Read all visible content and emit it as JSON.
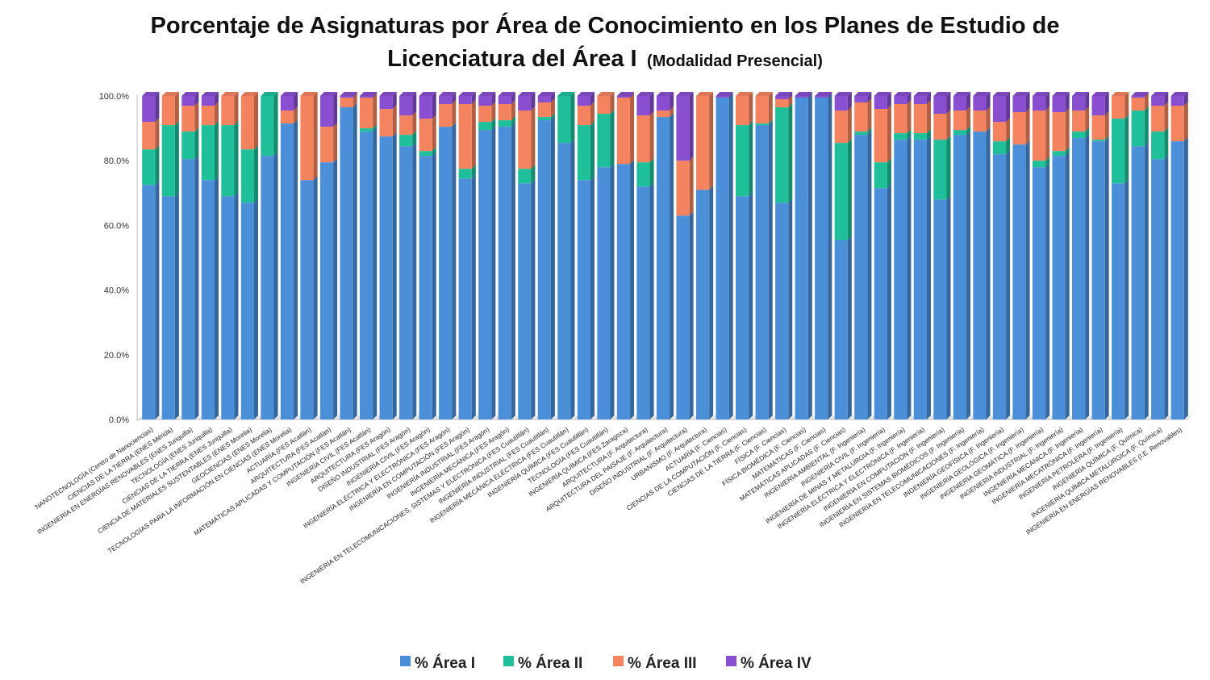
{
  "chart_data": {
    "type": "bar",
    "stacked": true,
    "title": "Porcentaje de Asignaturas por Área de Conocimiento en los Planes de Estudio de",
    "title_line2": "Licenciatura del Área I",
    "subtitle": "(Modalidad Presencial)",
    "xlabel": "",
    "ylabel": "",
    "ylim": [
      0,
      100
    ],
    "y_ticks": [
      "0.0%",
      "20.0%",
      "40.0%",
      "60.0%",
      "80.0%",
      "100.0%"
    ],
    "grid": false,
    "legend_position": "bottom",
    "categories": [
      "NANOTECNOLOGÍA (Centro de Nanociencias)",
      "CIENCIAS DE LA TIERRA (ENES Mérida)",
      "INGENIERÍA EN ENERGÍAS RENOVABLES (ENES Juriquilla)",
      "TECNOLOGÍA (ENES Juriquilla)",
      "CIENCIAS DE LA TIERRA (ENES Juriquilla)",
      "CIENCIA DE MATERIALES SUSTENTABLES (ENES Morelia)",
      "GEOCIENCIAS (ENES Morelia)",
      "TECNOLOGÍAS PARA LA INFORMACIÓN EN CIENCIAS (ENES Morelia)",
      "ACTUARÍA (FES Acatlán)",
      "ARQUITECTURA (FES Acatlán)",
      "MATEMÁTICAS APLICADAS Y COMPUTACIÓN (FES Acatlán)",
      "INGENIERÍA CIVIL (FES Acatlán)",
      "ARQUITECTURA (FES Aragón)",
      "DISEÑO INDUSTRIAL (FES Aragón)",
      "INGENIERÍA CIVIL (FES Aragón)",
      "INGENIERÍA ELÉCTRICA Y ELECTRÓNICA (FES Aragón)",
      "INGENIERÍA EN COMPUTACIÓN (FES Aragón)",
      "INGENIERÍA INDUSTRIAL (FES Aragón)",
      "INGENIERÍA MECÁNICA (FES Aragón)",
      "INGENIERÍA EN TELECOMUNICACIONES, SISTEMAS Y ELECTRÓNICA (FES Cuautitlán)",
      "INGENIERÍA INDUSTRIAL (FES Cuautitlán)",
      "INGENIERÍA MECÁNICA ELÉCTRICA (FES Cuautitlán)",
      "INGENIERÍA QUÍMICA (FES Cuautitlán)",
      "TECNOLOGÍA (FES Cuautitlán)",
      "INGENIERÍA QUÍMICA (FES Zaragoza)",
      "ARQUITECTURA (F. Arquitectura)",
      "ARQUITECTURA DEL PAISAJE (F. Arquitectura)",
      "DISEÑO INDUSTRIAL (F. Arquitectura)",
      "URBANISMO (F. Arquitectura)",
      "ACTUARÍA (F. Ciencias)",
      "CIENCIAS DE LA COMPUTACIÓN (F. Ciencias)",
      "CIENCIAS DE LA TIERRA (F. Ciencias)",
      "FÍSICA (F. Ciencias)",
      "FÍSICA BIOMÉDICA (F. Ciencias)",
      "MATEMÁTICAS (F. Ciencias)",
      "MATEMÁTICAS APLICADAS (F. Ciencias)",
      "INGENIERÍA AMBIENTAL (F. Ingeniería)",
      "INGENIERÍA CIVIL (F. Ingeniería)",
      "INGENIERÍA DE MINAS Y METALURGIA (F. Ingeniería)",
      "INGENIERÍA ELÉCTRICA Y ELECTRÓNICA (F. Ingeniería)",
      "INGENIERÍA EN COMPUTACIÓN (F. Ingeniería)",
      "INGENIERÍA EN SISTEMAS BIOMÉDICOS (F. Ingeniería)",
      "INGENIERÍA EN TELECOMUNICACIONES (F. Ingeniería)",
      "INGENIERÍA GEOFÍSICA (F. Ingeniería)",
      "INGENIERÍA GEOLÓGICA (F. Ingeniería)",
      "INGENIERÍA GEOMÁTICA (F. Ingeniería)",
      "INGENIERÍA INDUSTRIAL (F. Ingeniería)",
      "INGENIERÍA MECÁNICA (F. Ingeniería)",
      "INGENIERÍA MECATRÓNICA (F. Ingeniería)",
      "INGENIERÍA PETROLERA (F. Ingeniería)",
      "INGENIERÍA QUÍMICA (F. Química)",
      "INGENIERÍA QUÍMICA METALÚRGICA (F. Química)",
      "INGENIERÍA EN ENERGÍAS RENOVABLES (I.E. Renovables)"
    ],
    "series": [
      {
        "name": "% Área I",
        "color": "#4a8fd8",
        "values": [
          72.5,
          69,
          80.5,
          74,
          69,
          67,
          81.5,
          91.5,
          74,
          79.5,
          96.5,
          89,
          87.5,
          84.5,
          81.5,
          90.5,
          74.5,
          89.5,
          90.5,
          73,
          92.5,
          85.5,
          74,
          78,
          79,
          72,
          93.5,
          63,
          71,
          99.5,
          69,
          91,
          67,
          99.5,
          99.5,
          55.5,
          88,
          71.5,
          86.5,
          86.5,
          68,
          88,
          89,
          82,
          85,
          78,
          81.5,
          87,
          86,
          73,
          84.5,
          80.5,
          86
        ]
      },
      {
        "name": "% Área II",
        "color": "#1fbf9a",
        "values": [
          11,
          22,
          8.5,
          17,
          22,
          16.5,
          18.5,
          0,
          0,
          0,
          0,
          1,
          0,
          3.5,
          1.5,
          0,
          3,
          2.5,
          2,
          4.5,
          1,
          14.5,
          17,
          16.5,
          0,
          7.5,
          0,
          0,
          0,
          0,
          22,
          0.5,
          29.5,
          0,
          0,
          30,
          1,
          8,
          2,
          2,
          18.5,
          1.5,
          0,
          4,
          0,
          2,
          1.5,
          2,
          0.5,
          20,
          11,
          8.5,
          0
        ]
      },
      {
        "name": "% Área III",
        "color": "#f4845f",
        "values": [
          8.5,
          9,
          8,
          6,
          9,
          16.5,
          0,
          4,
          26,
          11,
          3,
          9.5,
          8.5,
          6,
          10,
          7,
          20,
          5,
          5,
          18,
          4.5,
          0,
          6,
          5.5,
          20.5,
          14.5,
          2,
          17,
          29,
          0,
          9,
          8.5,
          2.5,
          0,
          0,
          10,
          9,
          16.5,
          9,
          9,
          8,
          6,
          6.5,
          6,
          10,
          15.5,
          12,
          6.5,
          7.5,
          7,
          4,
          8,
          11
        ]
      },
      {
        "name": "% Área IV",
        "color": "#8a4fd0",
        "values": [
          8,
          0,
          3,
          3,
          0,
          0,
          0,
          4.5,
          0,
          9.5,
          0.5,
          0.5,
          4,
          6,
          7,
          2.5,
          2.5,
          3,
          2.5,
          4.5,
          2,
          0,
          3,
          0,
          0.5,
          6,
          4.5,
          20,
          0,
          0.5,
          0,
          0,
          1,
          0.5,
          0.5,
          4.5,
          2,
          4,
          2.5,
          2.5,
          5.5,
          4.5,
          4.5,
          8,
          5,
          4.5,
          5,
          4.5,
          6,
          0,
          0.5,
          3,
          3
        ]
      }
    ]
  }
}
